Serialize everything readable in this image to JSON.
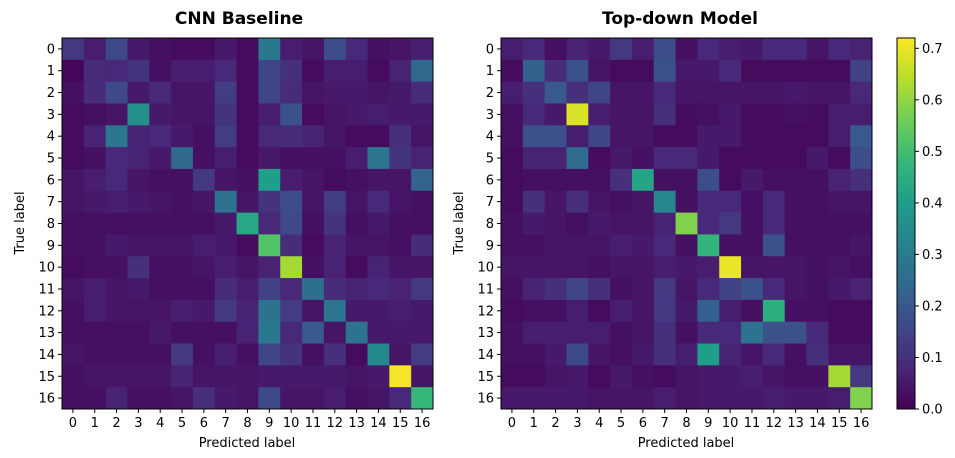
{
  "chart_data": [
    {
      "type": "heatmap",
      "title": "CNN Baseline",
      "xlabel": "Predicted label",
      "ylabel": "True label",
      "x_ticks": [
        "0",
        "1",
        "2",
        "3",
        "4",
        "5",
        "6",
        "7",
        "8",
        "9",
        "10",
        "11",
        "12",
        "13",
        "14",
        "15",
        "16"
      ],
      "y_ticks": [
        "0",
        "1",
        "2",
        "3",
        "4",
        "5",
        "6",
        "7",
        "8",
        "9",
        "10",
        "11",
        "12",
        "13",
        "14",
        "15",
        "16"
      ],
      "vmin": 0.0,
      "vmax": 0.72,
      "values": [
        [
          0.12,
          0.06,
          0.16,
          0.05,
          0.03,
          0.02,
          0.02,
          0.05,
          0.02,
          0.29,
          0.06,
          0.04,
          0.17,
          0.08,
          0.03,
          0.04,
          0.06
        ],
        [
          0.01,
          0.09,
          0.08,
          0.11,
          0.03,
          0.06,
          0.06,
          0.08,
          0.02,
          0.15,
          0.1,
          0.02,
          0.06,
          0.06,
          0.02,
          0.07,
          0.24
        ],
        [
          0.03,
          0.09,
          0.16,
          0.05,
          0.08,
          0.04,
          0.04,
          0.13,
          0.02,
          0.15,
          0.09,
          0.04,
          0.05,
          0.05,
          0.04,
          0.05,
          0.09
        ],
        [
          0.02,
          0.03,
          0.04,
          0.36,
          0.05,
          0.04,
          0.04,
          0.11,
          0.02,
          0.06,
          0.18,
          0.02,
          0.04,
          0.05,
          0.06,
          0.05,
          0.05
        ],
        [
          0.02,
          0.07,
          0.28,
          0.07,
          0.08,
          0.05,
          0.03,
          0.13,
          0.02,
          0.08,
          0.09,
          0.07,
          0.04,
          0.02,
          0.02,
          0.1,
          0.04
        ],
        [
          0.02,
          0.03,
          0.08,
          0.07,
          0.05,
          0.24,
          0.03,
          0.06,
          0.02,
          0.05,
          0.03,
          0.03,
          0.03,
          0.06,
          0.28,
          0.11,
          0.07
        ],
        [
          0.04,
          0.06,
          0.08,
          0.04,
          0.03,
          0.03,
          0.12,
          0.04,
          0.03,
          0.4,
          0.06,
          0.04,
          0.02,
          0.03,
          0.04,
          0.04,
          0.23
        ],
        [
          0.04,
          0.05,
          0.06,
          0.05,
          0.04,
          0.03,
          0.04,
          0.27,
          0.04,
          0.11,
          0.17,
          0.04,
          0.13,
          0.04,
          0.08,
          0.04,
          0.03
        ],
        [
          0.03,
          0.03,
          0.03,
          0.03,
          0.03,
          0.03,
          0.03,
          0.05,
          0.43,
          0.08,
          0.16,
          0.03,
          0.11,
          0.03,
          0.05,
          0.03,
          0.03
        ],
        [
          0.03,
          0.03,
          0.05,
          0.04,
          0.04,
          0.04,
          0.06,
          0.05,
          0.02,
          0.52,
          0.09,
          0.02,
          0.07,
          0.04,
          0.04,
          0.03,
          0.09
        ],
        [
          0.02,
          0.03,
          0.03,
          0.1,
          0.03,
          0.03,
          0.04,
          0.06,
          0.04,
          0.07,
          0.62,
          0.03,
          0.07,
          0.02,
          0.07,
          0.04,
          0.04
        ],
        [
          0.04,
          0.06,
          0.04,
          0.05,
          0.03,
          0.03,
          0.03,
          0.09,
          0.06,
          0.14,
          0.08,
          0.26,
          0.09,
          0.07,
          0.08,
          0.07,
          0.12
        ],
        [
          0.03,
          0.06,
          0.04,
          0.04,
          0.04,
          0.06,
          0.05,
          0.12,
          0.07,
          0.27,
          0.13,
          0.04,
          0.28,
          0.05,
          0.05,
          0.06,
          0.05
        ],
        [
          0.03,
          0.03,
          0.03,
          0.03,
          0.05,
          0.03,
          0.03,
          0.03,
          0.07,
          0.29,
          0.08,
          0.2,
          0.04,
          0.27,
          0.05,
          0.05,
          0.05
        ],
        [
          0.04,
          0.03,
          0.03,
          0.03,
          0.03,
          0.12,
          0.03,
          0.06,
          0.03,
          0.15,
          0.11,
          0.03,
          0.1,
          0.02,
          0.34,
          0.04,
          0.13
        ],
        [
          0.03,
          0.04,
          0.04,
          0.04,
          0.04,
          0.07,
          0.04,
          0.04,
          0.04,
          0.05,
          0.05,
          0.05,
          0.05,
          0.04,
          0.05,
          0.71,
          0.04
        ],
        [
          0.03,
          0.03,
          0.07,
          0.03,
          0.03,
          0.04,
          0.1,
          0.05,
          0.04,
          0.16,
          0.04,
          0.04,
          0.06,
          0.03,
          0.04,
          0.08,
          0.48
        ]
      ]
    },
    {
      "type": "heatmap",
      "title": "Top-down Model",
      "xlabel": "Predicted label",
      "ylabel": "True label",
      "x_ticks": [
        "0",
        "1",
        "2",
        "3",
        "4",
        "5",
        "6",
        "7",
        "8",
        "9",
        "10",
        "11",
        "12",
        "13",
        "14",
        "15",
        "16"
      ],
      "y_ticks": [
        "0",
        "1",
        "2",
        "3",
        "4",
        "5",
        "6",
        "7",
        "8",
        "9",
        "10",
        "11",
        "12",
        "13",
        "14",
        "15",
        "16"
      ],
      "vmin": 0.0,
      "vmax": 0.72,
      "values": [
        [
          0.06,
          0.08,
          0.03,
          0.07,
          0.05,
          0.12,
          0.06,
          0.17,
          0.03,
          0.08,
          0.06,
          0.05,
          0.08,
          0.08,
          0.04,
          0.08,
          0.07
        ],
        [
          0.02,
          0.22,
          0.09,
          0.18,
          0.04,
          0.02,
          0.02,
          0.18,
          0.05,
          0.05,
          0.08,
          0.02,
          0.02,
          0.02,
          0.02,
          0.02,
          0.14
        ],
        [
          0.06,
          0.1,
          0.2,
          0.1,
          0.15,
          0.04,
          0.04,
          0.08,
          0.04,
          0.04,
          0.04,
          0.04,
          0.04,
          0.05,
          0.04,
          0.04,
          0.08
        ],
        [
          0.03,
          0.08,
          0.05,
          0.68,
          0.06,
          0.04,
          0.04,
          0.1,
          0.02,
          0.03,
          0.05,
          0.02,
          0.02,
          0.03,
          0.02,
          0.06,
          0.06
        ],
        [
          0.03,
          0.18,
          0.18,
          0.06,
          0.15,
          0.04,
          0.04,
          0.02,
          0.02,
          0.05,
          0.05,
          0.02,
          0.02,
          0.02,
          0.02,
          0.06,
          0.2
        ],
        [
          0.02,
          0.07,
          0.07,
          0.25,
          0.02,
          0.05,
          0.03,
          0.08,
          0.08,
          0.05,
          0.02,
          0.02,
          0.02,
          0.02,
          0.05,
          0.02,
          0.17
        ],
        [
          0.02,
          0.03,
          0.03,
          0.03,
          0.03,
          0.1,
          0.42,
          0.03,
          0.03,
          0.17,
          0.02,
          0.05,
          0.03,
          0.03,
          0.03,
          0.07,
          0.1
        ],
        [
          0.02,
          0.1,
          0.04,
          0.1,
          0.04,
          0.03,
          0.04,
          0.33,
          0.03,
          0.08,
          0.08,
          0.03,
          0.08,
          0.03,
          0.03,
          0.04,
          0.04
        ],
        [
          0.03,
          0.05,
          0.04,
          0.03,
          0.05,
          0.04,
          0.04,
          0.07,
          0.58,
          0.08,
          0.12,
          0.03,
          0.08,
          0.03,
          0.03,
          0.03,
          0.03
        ],
        [
          0.03,
          0.03,
          0.04,
          0.04,
          0.04,
          0.06,
          0.05,
          0.08,
          0.03,
          0.47,
          0.03,
          0.03,
          0.18,
          0.03,
          0.03,
          0.03,
          0.04
        ],
        [
          0.04,
          0.04,
          0.04,
          0.04,
          0.03,
          0.04,
          0.04,
          0.06,
          0.05,
          0.06,
          0.7,
          0.04,
          0.04,
          0.04,
          0.03,
          0.04,
          0.03
        ],
        [
          0.03,
          0.07,
          0.1,
          0.15,
          0.1,
          0.03,
          0.04,
          0.12,
          0.04,
          0.08,
          0.14,
          0.18,
          0.08,
          0.04,
          0.03,
          0.05,
          0.07
        ],
        [
          0.02,
          0.03,
          0.03,
          0.06,
          0.02,
          0.06,
          0.04,
          0.12,
          0.05,
          0.22,
          0.06,
          0.03,
          0.45,
          0.03,
          0.03,
          0.02,
          0.02
        ],
        [
          0.03,
          0.06,
          0.06,
          0.06,
          0.06,
          0.03,
          0.04,
          0.1,
          0.03,
          0.08,
          0.08,
          0.27,
          0.18,
          0.18,
          0.08,
          0.02,
          0.02
        ],
        [
          0.03,
          0.03,
          0.05,
          0.16,
          0.04,
          0.03,
          0.05,
          0.1,
          0.06,
          0.4,
          0.07,
          0.04,
          0.08,
          0.03,
          0.1,
          0.04,
          0.04
        ],
        [
          0.02,
          0.02,
          0.04,
          0.05,
          0.02,
          0.05,
          0.03,
          0.02,
          0.04,
          0.05,
          0.05,
          0.06,
          0.04,
          0.03,
          0.03,
          0.62,
          0.12
        ],
        [
          0.05,
          0.05,
          0.05,
          0.05,
          0.04,
          0.04,
          0.04,
          0.06,
          0.04,
          0.05,
          0.05,
          0.05,
          0.06,
          0.05,
          0.05,
          0.06,
          0.58
        ]
      ]
    }
  ],
  "colorbar": {
    "ticks": [
      "0.0",
      "0.1",
      "0.2",
      "0.3",
      "0.4",
      "0.5",
      "0.6",
      "0.7"
    ],
    "tick_values": [
      0.0,
      0.1,
      0.2,
      0.3,
      0.4,
      0.5,
      0.6,
      0.7
    ],
    "vmin": 0.0,
    "vmax": 0.72,
    "colormap": [
      "#440154",
      "#482878",
      "#3e4989",
      "#31688e",
      "#26828e",
      "#1f9e89",
      "#35b779",
      "#6ece58",
      "#b5de2b",
      "#fde725"
    ]
  }
}
